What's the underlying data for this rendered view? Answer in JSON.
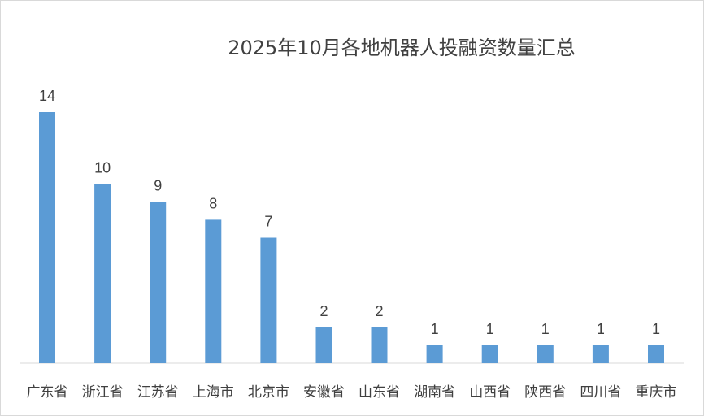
{
  "chart_data": {
    "type": "bar",
    "title": "2025年10月各地机器人投融资数量汇总",
    "categories": [
      "广东省",
      "浙江省",
      "江苏省",
      "上海市",
      "北京市",
      "安徽省",
      "山东省",
      "湖南省",
      "山西省",
      "陕西省",
      "四川省",
      "重庆市"
    ],
    "values": [
      14,
      10,
      9,
      8,
      7,
      2,
      2,
      1,
      1,
      1,
      1,
      1
    ],
    "xlabel": "",
    "ylabel": "",
    "ylim": [
      0,
      14
    ],
    "grid": false,
    "legend": "none",
    "bar_color": "#5b9bd5",
    "axis_color": "#d9d9d9"
  }
}
